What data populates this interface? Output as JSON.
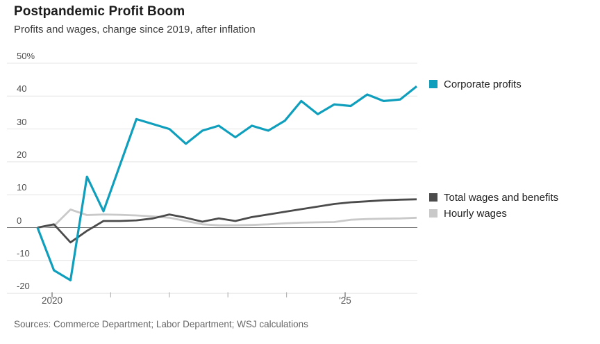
{
  "header": {
    "title": "Postpandemic Profit Boom",
    "subtitle": "Profits and wages, change since 2019, after inflation"
  },
  "source_note": "Sources: Commerce Department; Labor Department; WSJ calculations",
  "chart_data": {
    "type": "line",
    "title": "Postpandemic Profit Boom",
    "subtitle": "Profits and wages, change since 2019, after inflation",
    "unit": "%",
    "grid": true,
    "legend_position": "right",
    "ylim": [
      -20,
      50
    ],
    "yticks": [
      50,
      40,
      30,
      20,
      10,
      0,
      -10,
      -20
    ],
    "ytick_labels": [
      "50%",
      "40",
      "30",
      "20",
      "10",
      "0",
      "-10",
      "-20"
    ],
    "xticks": [
      {
        "year": 2020,
        "label": "2020"
      },
      {
        "year": 2021,
        "label": ""
      },
      {
        "year": 2022,
        "label": ""
      },
      {
        "year": 2023,
        "label": ""
      },
      {
        "year": 2024,
        "label": ""
      },
      {
        "year": 2025,
        "label": "'25"
      }
    ],
    "x": [
      "2019 Q4",
      "2020 Q1",
      "2020 Q2",
      "2020 Q3",
      "2020 Q4",
      "2021 Q1",
      "2021 Q2",
      "2021 Q3",
      "2021 Q4",
      "2022 Q1",
      "2022 Q2",
      "2022 Q3",
      "2022 Q4",
      "2023 Q1",
      "2023 Q2",
      "2023 Q3",
      "2023 Q4",
      "2024 Q1",
      "2024 Q2",
      "2024 Q3",
      "2024 Q4",
      "2025 Q1",
      "2025 Q2",
      "2025 Q3"
    ],
    "series": [
      {
        "name": "Corporate profits",
        "color": "#0f9fbd",
        "values": [
          0,
          -13,
          -16,
          15.5,
          5,
          19,
          33,
          31.5,
          30,
          25.5,
          29.5,
          31,
          27.5,
          31,
          29.5,
          32.5,
          38.5,
          34.5,
          37.5,
          37,
          40.5,
          38.5,
          39,
          43
        ]
      },
      {
        "name": "Total wages and benefits",
        "color": "#4b4b4b",
        "values": [
          0,
          1,
          -4.5,
          -1,
          2,
          2,
          2.2,
          2.8,
          4,
          3,
          1.8,
          2.8,
          2,
          3.2,
          4,
          4.8,
          5.6,
          6.4,
          7.2,
          7.7,
          8,
          8.3,
          8.5,
          8.6
        ]
      },
      {
        "name": "Hourly wages",
        "color": "#c9c9c9",
        "values": [
          0,
          0.5,
          5.5,
          3.8,
          4,
          3.9,
          3.7,
          3.4,
          3,
          2,
          1,
          0.7,
          0.7,
          0.8,
          1,
          1.3,
          1.5,
          1.6,
          1.7,
          2.4,
          2.6,
          2.7,
          2.8,
          3
        ]
      }
    ],
    "colors": {
      "gridline": "#e4e4e4",
      "zero_line": "#6e6e6e",
      "tick_major": "#6b6b6b",
      "tick_minor": "#b5b5b5"
    }
  }
}
